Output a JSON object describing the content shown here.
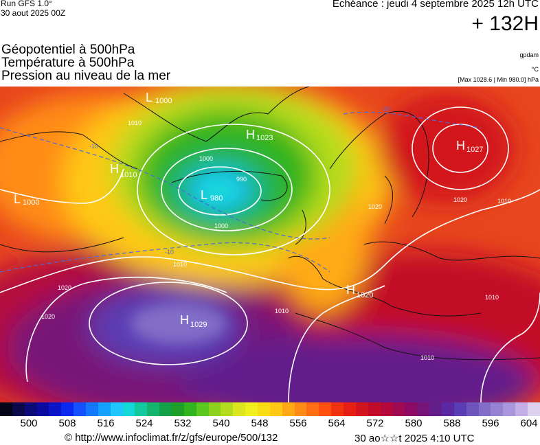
{
  "header": {
    "run": "Run GFS 1.0°",
    "run_date": "30 aout 2025 00Z",
    "forecast": "Echéance : jeudi 4 septembre 2025 12h UTC",
    "offset": "+ 132H"
  },
  "titles": {
    "geopotential": "Géopotentiel à 500hPa",
    "temperature": "Température à 500hPa",
    "pressure": "Pression au niveau de la mer"
  },
  "units": {
    "gpdam": "gpdam",
    "celsius": "°C",
    "minmax": "[Max 1028.6 | Min 980.0] hPa"
  },
  "map": {
    "pressure_centers": [
      {
        "type": "L",
        "value": "1000",
        "region": "southern Greenland"
      },
      {
        "type": "H",
        "value": "1023",
        "region": "northern Greenland"
      },
      {
        "type": "H",
        "value": "1010",
        "region": "Canada"
      },
      {
        "type": "L",
        "value": "1000",
        "region": "Hudson Bay"
      },
      {
        "type": "L",
        "value": "980",
        "region": "south of Iceland"
      },
      {
        "type": "H",
        "value": "1027",
        "region": "northern Russia"
      },
      {
        "type": "H",
        "value": "1020",
        "region": "Spain"
      },
      {
        "type": "H",
        "value": "1029",
        "region": "Azores"
      }
    ],
    "isobar_labels": [
      "1010",
      "1000",
      "990",
      "1000",
      "1010",
      "1020",
      "1020",
      "1010",
      "1020",
      "1010",
      "1010",
      "1020",
      "1010"
    ],
    "temperature_labels": [
      "-20",
      "-10",
      "-10"
    ]
  },
  "scale": {
    "colors": [
      "#05051a",
      "#0a0a4a",
      "#0a0a78",
      "#0a0aa0",
      "#0a14c8",
      "#0a28f0",
      "#1450ff",
      "#1478ff",
      "#14a0ff",
      "#1ec8ff",
      "#14d7d7",
      "#14c8a0",
      "#14b46e",
      "#14a046",
      "#1ea028",
      "#32b41e",
      "#5ac81e",
      "#8cd21e",
      "#b4dc1e",
      "#dce61e",
      "#f0f01e",
      "#fadc14",
      "#ffc814",
      "#ffaa14",
      "#ff8c14",
      "#ff6e14",
      "#ff500f",
      "#f0320f",
      "#e61e14",
      "#d2141e",
      "#c30a28",
      "#b4083c",
      "#a00a50",
      "#8c0a64",
      "#781478",
      "#641e8c",
      "#5a28a0",
      "#5a3cb4",
      "#6e55be",
      "#826ec8",
      "#9682d2",
      "#aa96dc",
      "#c3afe6",
      "#dcd2f0"
    ],
    "ticks": [
      "500",
      "508",
      "516",
      "524",
      "532",
      "540",
      "548",
      "556",
      "564",
      "572",
      "580",
      "588",
      "596",
      "604"
    ]
  },
  "footer": {
    "url": "© http://www.infoclimat.fr/z/gfs/europe/500/132",
    "date": "30 ao☆☆t 2025  4:10 UTC"
  }
}
